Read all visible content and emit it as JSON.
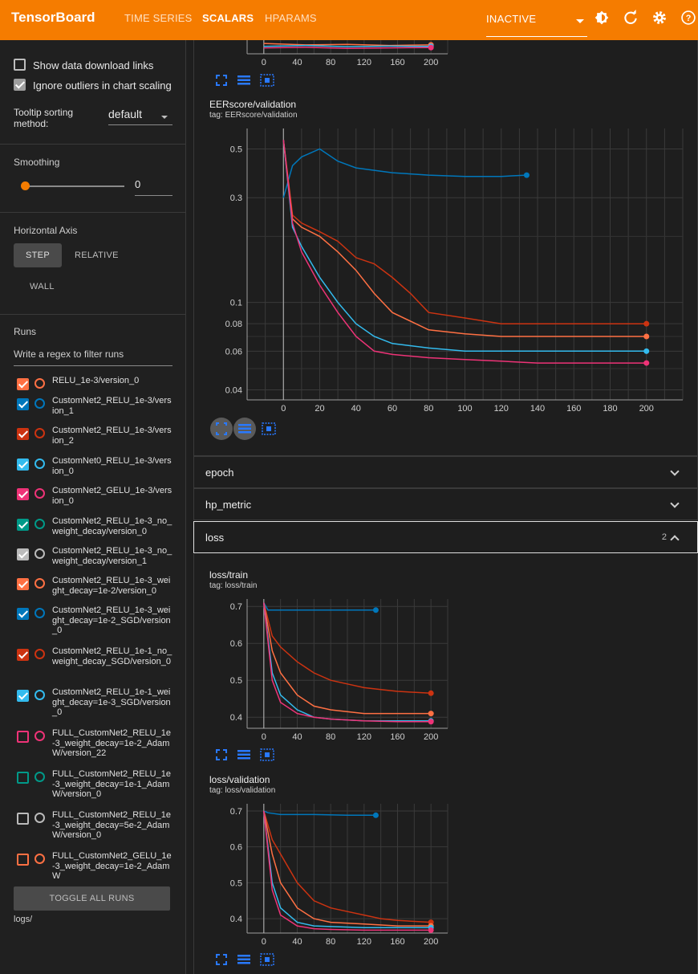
{
  "app": {
    "title": "TensorBoard"
  },
  "nav": {
    "tabs": [
      "TIME SERIES",
      "SCALARS",
      "HPARAMS"
    ],
    "active": "SCALARS",
    "selector_value": "INACTIVE"
  },
  "sidebar": {
    "show_download_links": "Show data download links",
    "ignore_outliers": "Ignore outliers in chart scaling",
    "tooltip_label": "Tooltip sorting method:",
    "tooltip_value": "default",
    "smoothing_label": "Smoothing",
    "smoothing_value": "0",
    "horizontal_axis_label": "Horizontal Axis",
    "axis_options": [
      "STEP",
      "RELATIVE",
      "WALL"
    ],
    "runs_label": "Runs",
    "runs_filter_placeholder": "Write a regex to filter runs",
    "toggle_all": "TOGGLE ALL RUNS",
    "logdir": "logs/",
    "runs": [
      {
        "name": "RELU_1e-3/version_0",
        "color": "#ff7043",
        "checked": true
      },
      {
        "name": "CustomNet2_RELU_1e-3/version_1",
        "color": "#0077bb",
        "checked": true
      },
      {
        "name": "CustomNet2_RELU_1e-3/version_2",
        "color": "#cc3311",
        "checked": true
      },
      {
        "name": "CustomNet0_RELU_1e-3/version_0",
        "color": "#33bbee",
        "checked": true
      },
      {
        "name": "CustomNet2_GELU_1e-3/version_0",
        "color": "#ee3377",
        "checked": true
      },
      {
        "name": "CustomNet2_RELU_1e-3_no_weight_decay/version_0",
        "color": "#009988",
        "checked": true
      },
      {
        "name": "CustomNet2_RELU_1e-3_no_weight_decay/version_1",
        "color": "#bbbbbb",
        "checked": true
      },
      {
        "name": "CustomNet2_RELU_1e-3_weight_decay=1e-2/version_0",
        "color": "#ff7043",
        "checked": true
      },
      {
        "name": "CustomNet2_RELU_1e-3_weight_decay=1e-2_SGD/version_0",
        "color": "#0077bb",
        "checked": true
      },
      {
        "name": "CustomNet2_RELU_1e-1_no_weight_decay_SGD/version_0",
        "color": "#cc3311",
        "checked": true
      },
      {
        "name": "CustomNet2_RELU_1e-1_weight_decay=1e-3_SGD/version_0",
        "color": "#33bbee",
        "checked": true
      },
      {
        "name": "FULL_CustomNet2_RELU_1e-3_weight_decay=1e-2_AdamW/version_22",
        "color": "#ee3377",
        "checked": false
      },
      {
        "name": "FULL_CustomNet2_RELU_1e-3_weight_decay=1e-1_AdamW/version_0",
        "color": "#009988",
        "checked": false
      },
      {
        "name": "FULL_CustomNet2_RELU_1e-3_weight_decay=5e-2_AdamW/version_0",
        "color": "#bbbbbb",
        "checked": false
      },
      {
        "name": "FULL_CustomNet2_GELU_1e-3_weight_decay=1e-2_AdamW",
        "color": "#ff7043",
        "checked": false
      }
    ]
  },
  "groups": {
    "epoch": "epoch",
    "hp_metric": "hp_metric",
    "loss": "loss",
    "loss_count": "2"
  },
  "chart_data": [
    {
      "type": "line",
      "title": "EERscore/validation",
      "tag": "tag: EERscore/validation",
      "x_ticks": [
        "0",
        "20",
        "40",
        "60",
        "80",
        "100",
        "120",
        "140",
        "160",
        "180",
        "200"
      ],
      "y_ticks": [
        "0.5",
        "0.3",
        "0.1",
        "0.08",
        "0.06",
        "0.04"
      ],
      "log_scale": true,
      "xlim": [
        -20,
        220
      ],
      "ylim": [
        0.036,
        0.62
      ],
      "series": [
        {
          "color": "#0077bb",
          "x": [
            0,
            5,
            10,
            20,
            30,
            40,
            60,
            80,
            100,
            120,
            134
          ],
          "y": [
            0.3,
            0.42,
            0.46,
            0.5,
            0.44,
            0.41,
            0.39,
            0.38,
            0.375,
            0.375,
            0.38
          ]
        },
        {
          "color": "#cc3311",
          "x": [
            0,
            5,
            10,
            20,
            30,
            40,
            50,
            60,
            70,
            80,
            100,
            120,
            140,
            160,
            200
          ],
          "y": [
            0.55,
            0.25,
            0.23,
            0.21,
            0.19,
            0.16,
            0.15,
            0.13,
            0.11,
            0.09,
            0.085,
            0.08,
            0.08,
            0.08,
            0.08
          ]
        },
        {
          "color": "#ff7043",
          "x": [
            0,
            5,
            10,
            20,
            30,
            40,
            50,
            60,
            80,
            100,
            120,
            140,
            160,
            200
          ],
          "y": [
            0.55,
            0.24,
            0.22,
            0.2,
            0.17,
            0.14,
            0.11,
            0.09,
            0.075,
            0.072,
            0.07,
            0.07,
            0.07,
            0.07
          ]
        },
        {
          "color": "#33bbee",
          "x": [
            0,
            5,
            10,
            20,
            30,
            40,
            50,
            60,
            80,
            100,
            120,
            140,
            160,
            200
          ],
          "y": [
            0.55,
            0.22,
            0.18,
            0.13,
            0.1,
            0.08,
            0.07,
            0.065,
            0.062,
            0.06,
            0.06,
            0.06,
            0.06,
            0.06
          ]
        },
        {
          "color": "#ee3377",
          "x": [
            0,
            5,
            10,
            20,
            30,
            40,
            50,
            60,
            80,
            100,
            120,
            140,
            160,
            200
          ],
          "y": [
            0.55,
            0.23,
            0.17,
            0.12,
            0.09,
            0.07,
            0.06,
            0.058,
            0.056,
            0.055,
            0.054,
            0.053,
            0.053,
            0.053
          ]
        }
      ]
    },
    {
      "type": "line",
      "title": "loss/train",
      "tag": "tag: loss/train",
      "x_ticks": [
        "0",
        "40",
        "80",
        "120",
        "160",
        "200"
      ],
      "y_ticks": [
        "0.7",
        "0.6",
        "0.5",
        "0.4"
      ],
      "xlim": [
        -20,
        220
      ],
      "ylim": [
        0.37,
        0.72
      ],
      "series": [
        {
          "color": "#0077bb",
          "x": [
            0,
            5,
            20,
            60,
            100,
            134
          ],
          "y": [
            0.71,
            0.69,
            0.69,
            0.69,
            0.69,
            0.69
          ]
        },
        {
          "color": "#cc3311",
          "x": [
            0,
            10,
            20,
            40,
            60,
            80,
            100,
            120,
            140,
            160,
            200
          ],
          "y": [
            0.71,
            0.62,
            0.59,
            0.55,
            0.52,
            0.5,
            0.49,
            0.48,
            0.475,
            0.47,
            0.465
          ]
        },
        {
          "color": "#ff7043",
          "x": [
            0,
            10,
            20,
            40,
            60,
            80,
            120,
            160,
            200
          ],
          "y": [
            0.71,
            0.58,
            0.52,
            0.46,
            0.43,
            0.42,
            0.41,
            0.41,
            0.41
          ]
        },
        {
          "color": "#33bbee",
          "x": [
            0,
            10,
            20,
            40,
            60,
            80,
            120,
            160,
            200
          ],
          "y": [
            0.71,
            0.52,
            0.46,
            0.42,
            0.4,
            0.395,
            0.39,
            0.39,
            0.39
          ]
        },
        {
          "color": "#ee3377",
          "x": [
            0,
            10,
            20,
            40,
            60,
            80,
            120,
            160,
            200
          ],
          "y": [
            0.71,
            0.5,
            0.44,
            0.41,
            0.4,
            0.395,
            0.39,
            0.388,
            0.388
          ]
        }
      ]
    },
    {
      "type": "line",
      "title": "loss/validation",
      "tag": "tag: loss/validation",
      "x_ticks": [
        "0",
        "40",
        "80",
        "120",
        "160",
        "200"
      ],
      "y_ticks": [
        "0.7",
        "0.6",
        "0.5",
        "0.4"
      ],
      "xlim": [
        -20,
        220
      ],
      "ylim": [
        0.36,
        0.72
      ],
      "series": [
        {
          "color": "#0077bb",
          "x": [
            0,
            5,
            20,
            60,
            100,
            134
          ],
          "y": [
            0.7,
            0.695,
            0.69,
            0.69,
            0.688,
            0.688
          ]
        },
        {
          "color": "#cc3311",
          "x": [
            0,
            10,
            20,
            40,
            60,
            80,
            100,
            120,
            140,
            160,
            200
          ],
          "y": [
            0.7,
            0.62,
            0.58,
            0.5,
            0.45,
            0.43,
            0.42,
            0.41,
            0.4,
            0.395,
            0.39
          ]
        },
        {
          "color": "#ff7043",
          "x": [
            0,
            10,
            20,
            40,
            60,
            80,
            120,
            160,
            200
          ],
          "y": [
            0.7,
            0.58,
            0.5,
            0.43,
            0.4,
            0.39,
            0.385,
            0.38,
            0.38
          ]
        },
        {
          "color": "#33bbee",
          "x": [
            0,
            10,
            20,
            40,
            60,
            80,
            120,
            160,
            200
          ],
          "y": [
            0.7,
            0.5,
            0.43,
            0.39,
            0.38,
            0.378,
            0.375,
            0.375,
            0.375
          ]
        },
        {
          "color": "#ee3377",
          "x": [
            0,
            10,
            20,
            40,
            60,
            80,
            120,
            160,
            200
          ],
          "y": [
            0.7,
            0.48,
            0.41,
            0.38,
            0.372,
            0.37,
            0.368,
            0.368,
            0.368
          ]
        }
      ]
    },
    {
      "type": "line",
      "title": "",
      "x_ticks": [
        "0",
        "40",
        "80",
        "120",
        "160",
        "200"
      ],
      "y_ticks": [],
      "xlim": [
        -20,
        220
      ],
      "ylim": [
        0,
        1
      ],
      "series": [
        {
          "color": "#ff7043",
          "x": [
            0,
            50,
            100,
            150,
            200
          ],
          "y": [
            0.35,
            0.3,
            0.32,
            0.28,
            0.3
          ]
        },
        {
          "color": "#33bbee",
          "x": [
            0,
            50,
            100,
            150,
            200
          ],
          "y": [
            0.25,
            0.28,
            0.24,
            0.26,
            0.25
          ]
        },
        {
          "color": "#ee3377",
          "x": [
            0,
            50,
            100,
            150,
            200
          ],
          "y": [
            0.2,
            0.22,
            0.18,
            0.2,
            0.21
          ]
        }
      ]
    }
  ]
}
